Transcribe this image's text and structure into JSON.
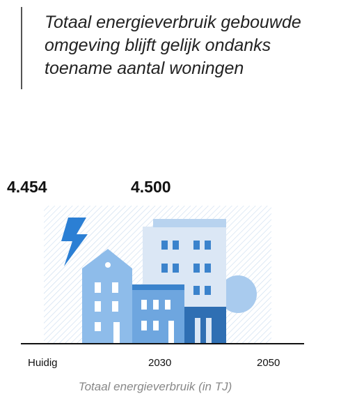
{
  "title": "Totaal energieverbruik gebouwde omgeving blijft gelijk ondanks toename aantal woningen",
  "figure": {
    "labels": [
      "4.454",
      "4.500"
    ],
    "axis": [
      "Huidig",
      "2030",
      "2050"
    ],
    "caption": "Totaal energieverbruik (in TJ)"
  }
}
